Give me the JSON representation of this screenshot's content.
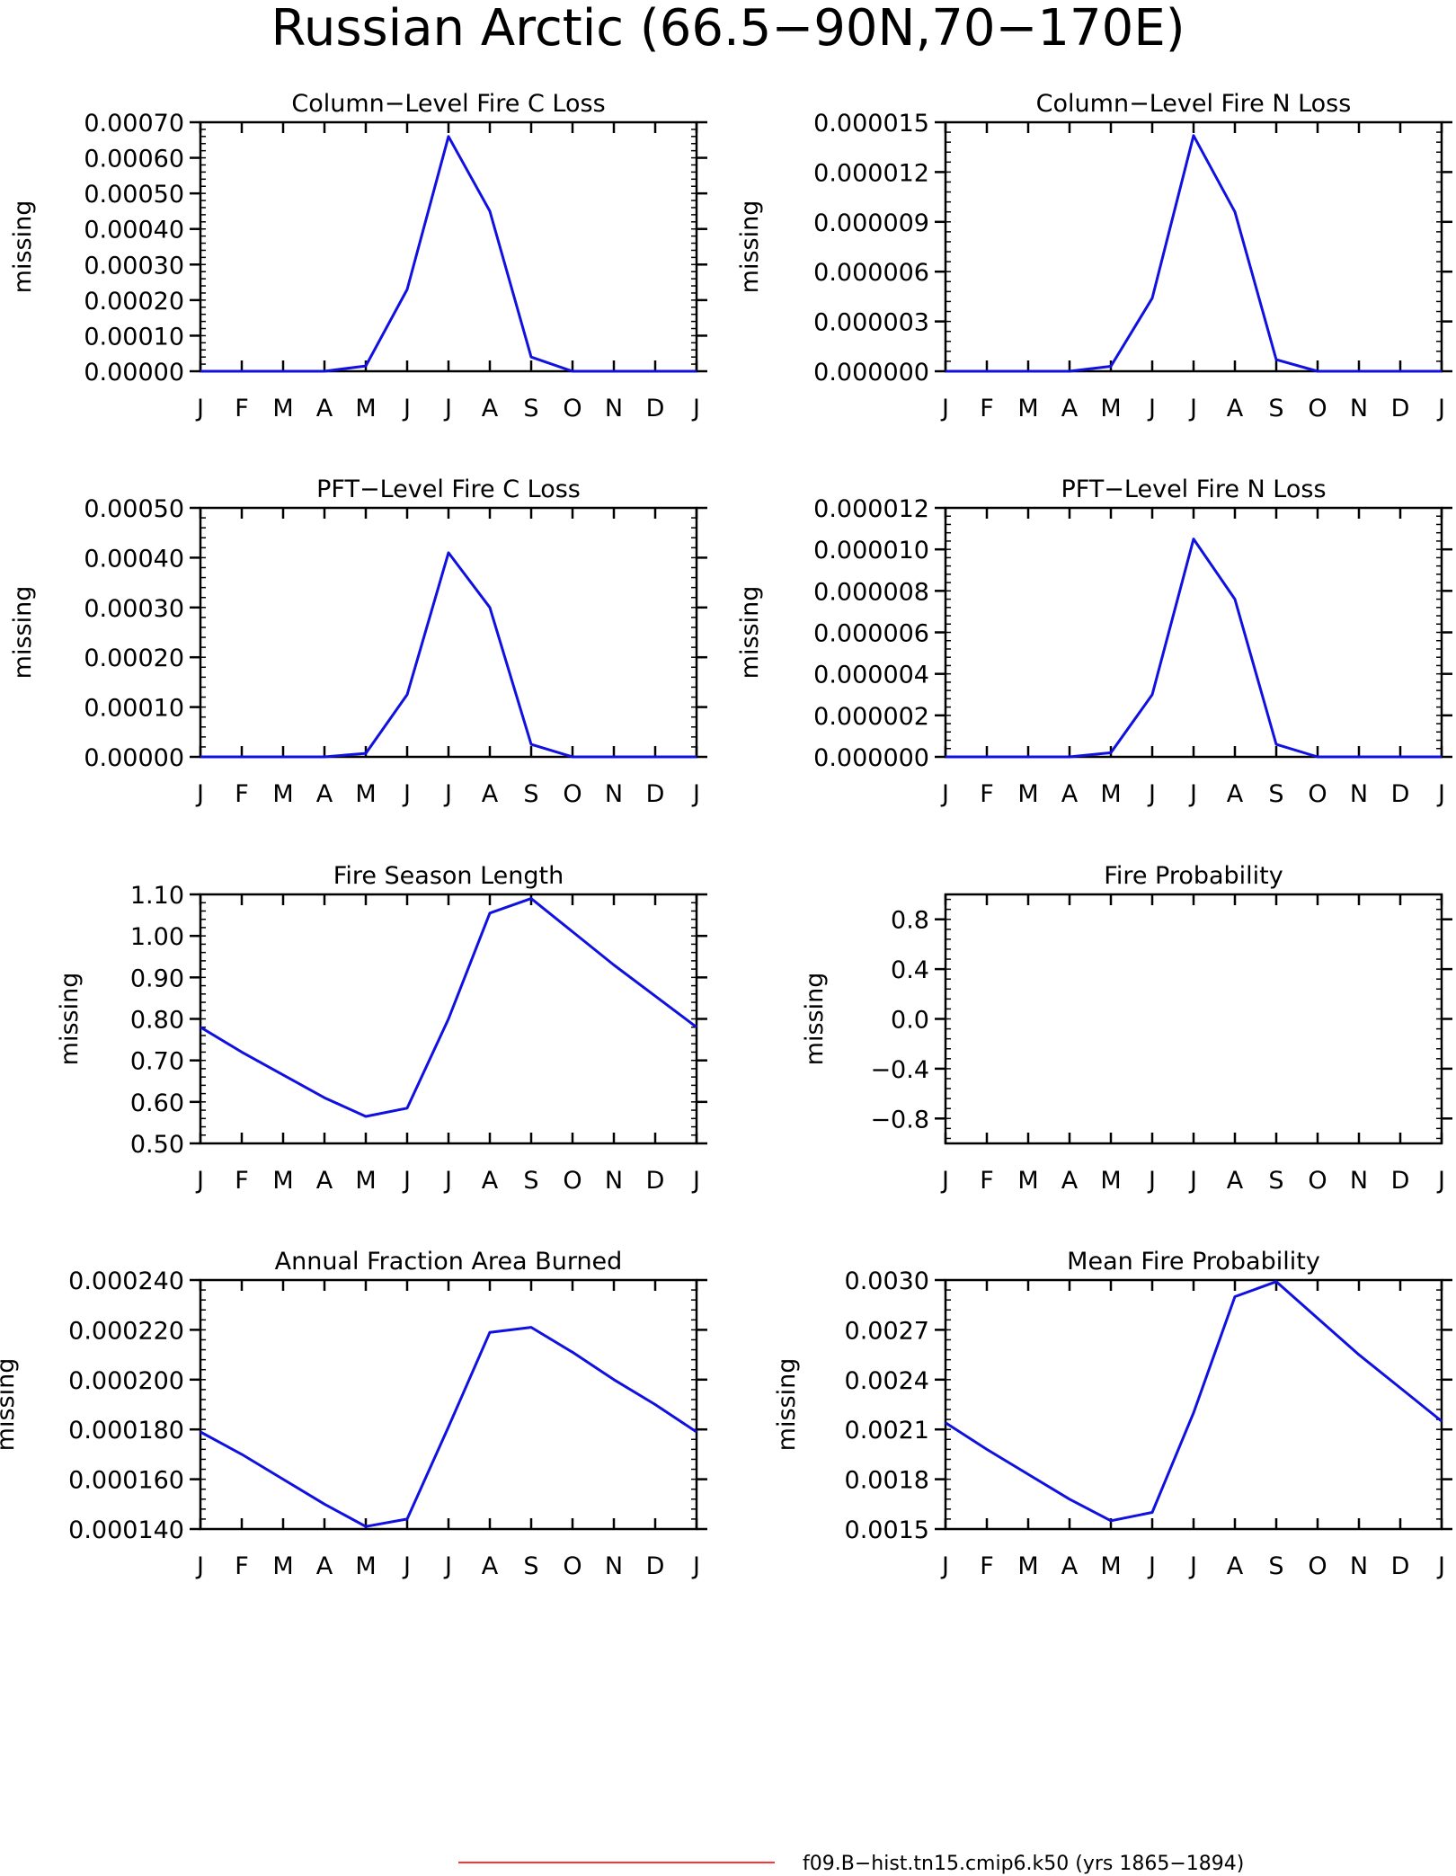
{
  "page_title": "Russian Arctic (66.5−90N,70−170E)",
  "legend": {
    "label": "f09.B−hist.tn15.cmip6.k50 (yrs 1865−1894)",
    "line_color": "#ff3333"
  },
  "colors": {
    "series": "#1010e0",
    "axis": "#000000"
  },
  "chart_data": [
    {
      "type": "line",
      "title": "Column−Level Fire C Loss",
      "ylabel": "missing",
      "x": [
        "J",
        "F",
        "M",
        "A",
        "M",
        "J",
        "J",
        "A",
        "S",
        "O",
        "N",
        "D",
        "J"
      ],
      "ylim": [
        0,
        0.0007
      ],
      "yticks": [
        "0.00000",
        "0.00010",
        "0.00020",
        "0.00030",
        "0.00040",
        "0.00050",
        "0.00060",
        "0.00070"
      ],
      "series": [
        {
          "values": [
            0,
            0,
            0,
            0,
            1.5e-05,
            0.00023,
            0.00066,
            0.00045,
            4e-05,
            0,
            0,
            0,
            0
          ]
        }
      ]
    },
    {
      "type": "line",
      "title": "Column−Level Fire N Loss",
      "ylabel": "missing",
      "x": [
        "J",
        "F",
        "M",
        "A",
        "M",
        "J",
        "J",
        "A",
        "S",
        "O",
        "N",
        "D",
        "J"
      ],
      "ylim": [
        0,
        1.5e-05
      ],
      "yticks": [
        "0.000000",
        "0.000003",
        "0.000006",
        "0.000009",
        "0.000012",
        "0.000015"
      ],
      "series": [
        {
          "values": [
            0,
            0,
            0,
            0,
            3e-07,
            4.4e-06,
            1.42e-05,
            9.6e-06,
            7e-07,
            0,
            0,
            0,
            0
          ]
        }
      ]
    },
    {
      "type": "line",
      "title": "PFT−Level Fire C Loss",
      "ylabel": "missing",
      "x": [
        "J",
        "F",
        "M",
        "A",
        "M",
        "J",
        "J",
        "A",
        "S",
        "O",
        "N",
        "D",
        "J"
      ],
      "ylim": [
        0,
        0.0005
      ],
      "yticks": [
        "0.00000",
        "0.00010",
        "0.00020",
        "0.00030",
        "0.00040",
        "0.00050"
      ],
      "series": [
        {
          "values": [
            0,
            0,
            0,
            0,
            7e-06,
            0.000125,
            0.00041,
            0.0003,
            2.5e-05,
            0,
            0,
            0,
            0
          ]
        }
      ]
    },
    {
      "type": "line",
      "title": "PFT−Level Fire N Loss",
      "ylabel": "missing",
      "x": [
        "J",
        "F",
        "M",
        "A",
        "M",
        "J",
        "J",
        "A",
        "S",
        "O",
        "N",
        "D",
        "J"
      ],
      "ylim": [
        0,
        1.2e-05
      ],
      "yticks": [
        "0.000000",
        "0.000002",
        "0.000004",
        "0.000006",
        "0.000008",
        "0.000010",
        "0.000012"
      ],
      "series": [
        {
          "values": [
            0,
            0,
            0,
            0,
            2e-07,
            3e-06,
            1.05e-05,
            7.6e-06,
            6e-07,
            0,
            0,
            0,
            0
          ]
        }
      ]
    },
    {
      "type": "line",
      "title": "Fire Season Length",
      "ylabel": "missing",
      "x": [
        "J",
        "F",
        "M",
        "A",
        "M",
        "J",
        "J",
        "A",
        "S",
        "O",
        "N",
        "D",
        "J"
      ],
      "ylim": [
        0.5,
        1.1
      ],
      "yticks": [
        "0.50",
        "0.60",
        "0.70",
        "0.80",
        "0.90",
        "1.00",
        "1.10"
      ],
      "series": [
        {
          "values": [
            0.78,
            0.72,
            0.665,
            0.61,
            0.565,
            0.585,
            0.8,
            1.055,
            1.09,
            1.01,
            0.93,
            0.855,
            0.78
          ]
        }
      ]
    },
    {
      "type": "line",
      "title": "Fire Probability",
      "ylabel": "missing",
      "x": [
        "J",
        "F",
        "M",
        "A",
        "M",
        "J",
        "J",
        "A",
        "S",
        "O",
        "N",
        "D",
        "J"
      ],
      "ylim": [
        -1.0,
        1.0
      ],
      "yticks": [
        "−0.8",
        "−0.4",
        "0.0",
        "0.4",
        "0.8"
      ],
      "ytick_values": [
        -0.8,
        -0.4,
        0.0,
        0.4,
        0.8
      ],
      "series": []
    },
    {
      "type": "line",
      "title": "Annual Fraction Area Burned",
      "ylabel": "missing",
      "x": [
        "J",
        "F",
        "M",
        "A",
        "M",
        "J",
        "J",
        "A",
        "S",
        "O",
        "N",
        "D",
        "J"
      ],
      "ylim": [
        0.00014,
        0.00024
      ],
      "yticks": [
        "0.000140",
        "0.000160",
        "0.000180",
        "0.000200",
        "0.000220",
        "0.000240"
      ],
      "series": [
        {
          "values": [
            0.000179,
            0.00017,
            0.00016,
            0.00015,
            0.000141,
            0.000144,
            0.000181,
            0.000219,
            0.000221,
            0.000211,
            0.0002,
            0.00019,
            0.000179
          ]
        }
      ]
    },
    {
      "type": "line",
      "title": "Mean Fire Probability",
      "ylabel": "missing",
      "x": [
        "J",
        "F",
        "M",
        "A",
        "M",
        "J",
        "J",
        "A",
        "S",
        "O",
        "N",
        "D",
        "J"
      ],
      "ylim": [
        0.0015,
        0.003
      ],
      "yticks": [
        "0.0015",
        "0.0018",
        "0.0021",
        "0.0024",
        "0.0027",
        "0.0030"
      ],
      "series": [
        {
          "values": [
            0.00214,
            0.00198,
            0.00183,
            0.00168,
            0.00155,
            0.0016,
            0.0022,
            0.0029,
            0.00299,
            0.00277,
            0.00255,
            0.00235,
            0.00215
          ]
        }
      ]
    }
  ]
}
